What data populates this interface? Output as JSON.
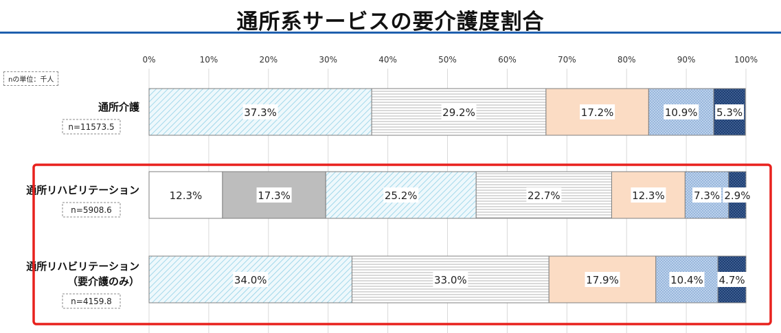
{
  "title": "通所系サービスの要介護度割合",
  "unit_note": "nの単位：千人",
  "colors": {
    "title_rule": "#1f5fae",
    "highlight": "#e8211d"
  },
  "chart_data": {
    "type": "bar",
    "orientation": "horizontal",
    "stacked": true,
    "percent": true,
    "xlim": [
      0,
      100
    ],
    "x_ticks": [
      "0%",
      "10%",
      "20%",
      "30%",
      "40%",
      "50%",
      "60%",
      "70%",
      "80%",
      "90%",
      "100%"
    ],
    "grid": true,
    "legend": "none",
    "rows": [
      {
        "lines": [
          "通所介護"
        ],
        "n": "n=11573.5",
        "segments": [
          {
            "value": 37.3,
            "label": "37.3%",
            "fill": "lightblue-hatch"
          },
          {
            "value": 29.2,
            "label": "29.2%",
            "fill": "gray-lines"
          },
          {
            "value": 17.2,
            "label": "17.2%",
            "fill": "peach"
          },
          {
            "value": 10.9,
            "label": "10.9%",
            "fill": "blue-dots"
          },
          {
            "value": 5.3,
            "label": "5.3%",
            "fill": "navy-dots"
          }
        ]
      },
      {
        "lines": [
          "通所リハビリテーション"
        ],
        "n": "n=5908.6",
        "segments": [
          {
            "value": 12.3,
            "label": "12.3%",
            "fill": "white"
          },
          {
            "value": 17.3,
            "label": "17.3%",
            "fill": "gray"
          },
          {
            "value": 25.2,
            "label": "25.2%",
            "fill": "lightblue-hatch"
          },
          {
            "value": 22.7,
            "label": "22.7%",
            "fill": "gray-lines"
          },
          {
            "value": 12.3,
            "label": "12.3%",
            "fill": "peach"
          },
          {
            "value": 7.3,
            "label": "7.3%",
            "fill": "blue-dots"
          },
          {
            "value": 2.9,
            "label": "2.9%",
            "fill": "navy-dots"
          }
        ]
      },
      {
        "lines": [
          "通所リハビリテーション",
          "（要介護のみ）"
        ],
        "n": "n=4159.8",
        "segments": [
          {
            "value": 34.0,
            "label": "34.0%",
            "fill": "lightblue-hatch"
          },
          {
            "value": 33.0,
            "label": "33.0%",
            "fill": "gray-lines"
          },
          {
            "value": 17.9,
            "label": "17.9%",
            "fill": "peach"
          },
          {
            "value": 10.4,
            "label": "10.4%",
            "fill": "blue-dots"
          },
          {
            "value": 4.7,
            "label": "4.7%",
            "fill": "navy-dots"
          }
        ]
      }
    ],
    "highlighted_rows": [
      1,
      2
    ]
  }
}
